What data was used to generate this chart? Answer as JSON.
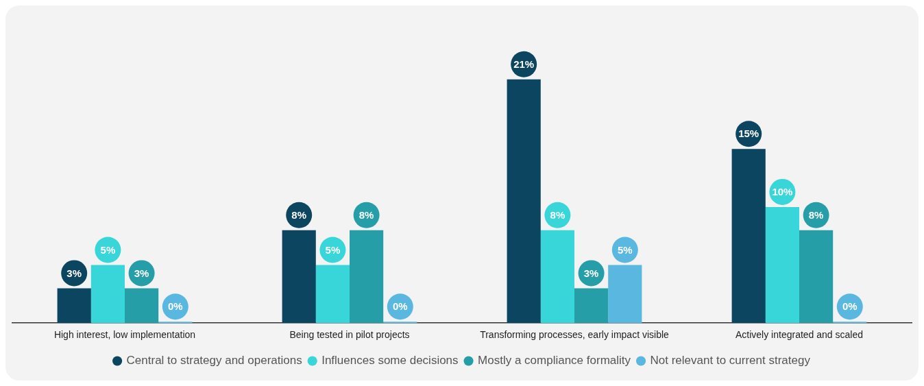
{
  "chart_data": {
    "type": "bar",
    "categories": [
      "High interest, low implementation",
      "Being tested in pilot projects",
      "Transforming processes, early impact visible",
      "Actively integrated and scaled"
    ],
    "series": [
      {
        "name": "Central to strategy and operations",
        "color": "#0b4560",
        "values": [
          3,
          8,
          21,
          15
        ],
        "value_labels": [
          "3%",
          "8%",
          "21%",
          "15%"
        ]
      },
      {
        "name": "Influences some decisions",
        "color": "#38d6d9",
        "values": [
          5,
          5,
          8,
          10
        ],
        "value_labels": [
          "5%",
          "5%",
          "8%",
          "10%"
        ]
      },
      {
        "name": "Mostly a compliance formality",
        "color": "#259ea8",
        "values": [
          3,
          8,
          3,
          8
        ],
        "value_labels": [
          "3%",
          "8%",
          "3%",
          "8%"
        ]
      },
      {
        "name": "Not relevant to current strategy",
        "color": "#5ab7e0",
        "values": [
          0,
          0,
          5,
          0
        ],
        "value_labels": [
          "0%",
          "0%",
          "5%",
          "0%"
        ]
      }
    ],
    "grid": false,
    "legend": "bottom"
  }
}
